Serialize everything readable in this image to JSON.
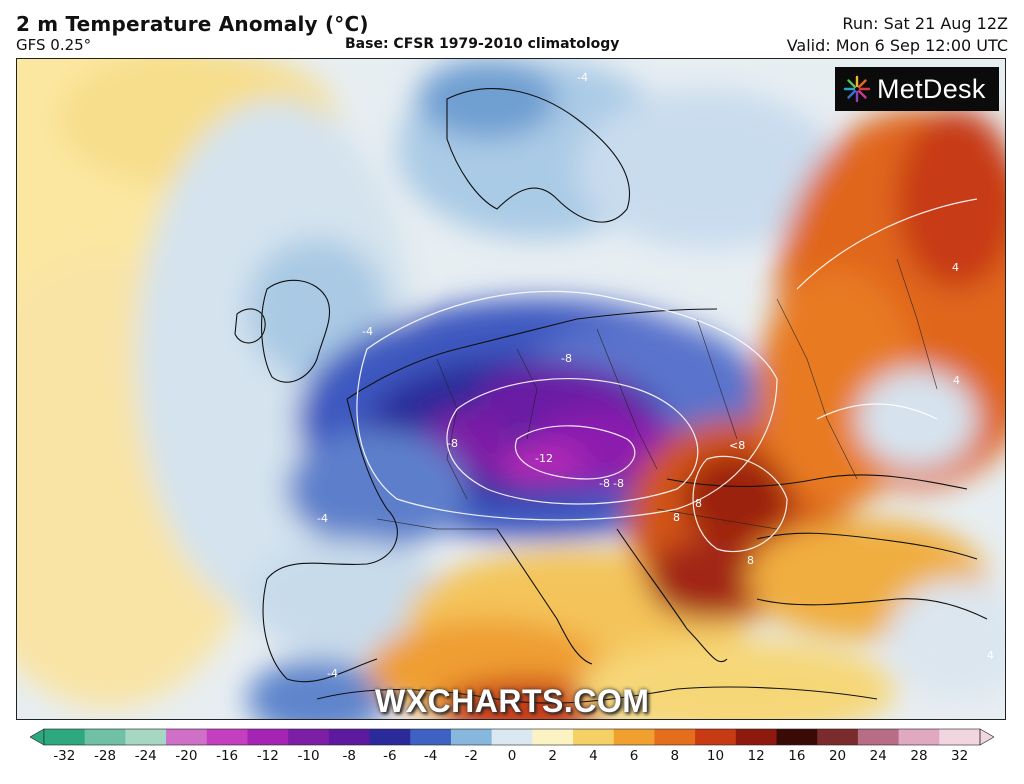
{
  "header": {
    "title": "2 m Temperature Anomaly (°C)",
    "model": "GFS 0.25°",
    "base": "Base: CFSR 1979-2010 climatology",
    "run": "Run: Sat 21 Aug 12Z",
    "valid": "Valid: Mon 6 Sep 12:00 UTC"
  },
  "logo": {
    "text": "MetDesk",
    "icon": "starburst-logo-icon"
  },
  "watermark": "WXCHARTS.COM",
  "map": {
    "contour_labels": [
      "-4",
      "-4",
      "-4",
      "-4",
      "-8",
      "-8",
      "-8",
      "-12",
      "-8",
      "<8",
      "8",
      "8",
      "8",
      "4",
      "4",
      "4"
    ]
  },
  "colorbar": {
    "ticks": [
      "-32",
      "-28",
      "-24",
      "-20",
      "-16",
      "-12",
      "-10",
      "-8",
      "-6",
      "-4",
      "-2",
      "0",
      "2",
      "4",
      "6",
      "8",
      "10",
      "12",
      "16",
      "20",
      "24",
      "28",
      "32"
    ],
    "colors": [
      "#2ea87e",
      "#6fc0a4",
      "#a6d6c4",
      "#cf6fc8",
      "#c43ec0",
      "#a624b4",
      "#7d1ea6",
      "#5d1a9e",
      "#2b2a9a",
      "#3f62c2",
      "#86b8dd",
      "#d9e8f1",
      "#fbf3c3",
      "#f5d064",
      "#f0a02e",
      "#e46e1c",
      "#c73a14",
      "#8e1a0d",
      "#3a0a07",
      "#7a2c2c",
      "#b86d86",
      "#e0a9c0",
      "#f1d6df"
    ]
  }
}
